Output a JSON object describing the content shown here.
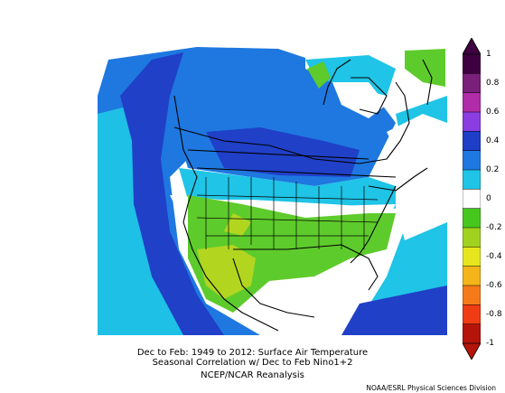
{
  "captions": {
    "line1": "Dec to Feb: 1949 to 2012: Surface Air Temperature",
    "line2": "Seasonal Correlation w/ Dec to Feb Nino1+2",
    "line3": "NCEP/NCAR Reanalysis"
  },
  "credit": "NOAA/ESRL Physical Sciences Division",
  "colorbar": {
    "ticks": [
      "1",
      "0.8",
      "0.6",
      "0.4",
      "0.2",
      "0",
      "-0.2",
      "-0.4",
      "-0.6",
      "-0.8",
      "-1"
    ],
    "colors": [
      "#3d0040",
      "#7a1f7a",
      "#b02ca8",
      "#8a3de0",
      "#1e3ec8",
      "#1e78e0",
      "#1fc4e6",
      "#ffffff",
      "#46c71e",
      "#a0d21f",
      "#e6e61e",
      "#f5b419",
      "#f57a19",
      "#f03c14",
      "#b4140a"
    ]
  },
  "map": {
    "fields": {
      "ocean_west": "#1fa8e8",
      "deep_blue": "#2040c8",
      "blue": "#1e78e0",
      "cyan": "#1fc4e6",
      "white": "#ffffff",
      "green": "#5ecb2c",
      "yellow_green": "#b2d620",
      "light_green": "#7fd43a"
    }
  }
}
